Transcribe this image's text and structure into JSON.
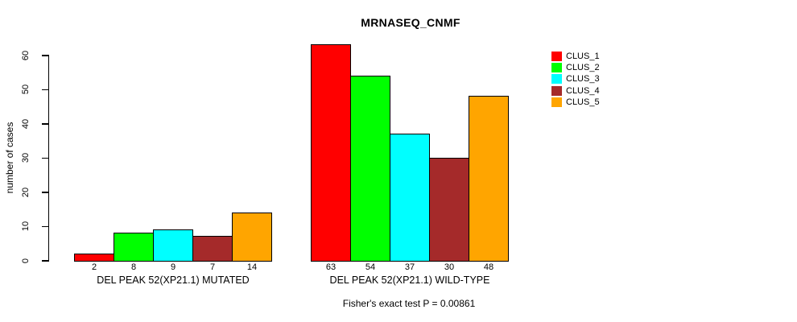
{
  "figure": {
    "title": "MRNASEQ_CNMF",
    "y_axis_label": "number of cases",
    "caption": "Fisher's exact test P = 0.00861"
  },
  "legend": {
    "items": [
      {
        "label": "CLUS_1",
        "color": "#FF0000"
      },
      {
        "label": "CLUS_2",
        "color": "#00FF00"
      },
      {
        "label": "CLUS_3",
        "color": "#00FFFF"
      },
      {
        "label": "CLUS_4",
        "color": "#A52A2A"
      },
      {
        "label": "CLUS_5",
        "color": "#FFA500"
      }
    ]
  },
  "chart_data": {
    "type": "bar",
    "title": "MRNASEQ_CNMF",
    "ylabel": "number of cases",
    "xlabel": "",
    "yticks": [
      0,
      10,
      20,
      30,
      40,
      50,
      60
    ],
    "ylim": [
      0,
      60
    ],
    "grid": false,
    "legend_position": "right",
    "series": [
      "CLUS_1",
      "CLUS_2",
      "CLUS_3",
      "CLUS_4",
      "CLUS_5"
    ],
    "series_colors": [
      "#FF0000",
      "#00FF00",
      "#00FFFF",
      "#A52A2A",
      "#FFA500"
    ],
    "groups": [
      {
        "label": "DEL PEAK 52(XP21.1) MUTATED",
        "values": [
          2,
          8,
          9,
          7,
          14
        ]
      },
      {
        "label": "DEL PEAK 52(XP21.1) WILD-TYPE",
        "values": [
          63,
          54,
          37,
          30,
          48
        ]
      }
    ],
    "bar_value_labels": [
      [
        2,
        8,
        9,
        7,
        14
      ],
      [
        63,
        54,
        37,
        30,
        48
      ]
    ],
    "annotation": "Fisher's exact test P = 0.00861"
  }
}
